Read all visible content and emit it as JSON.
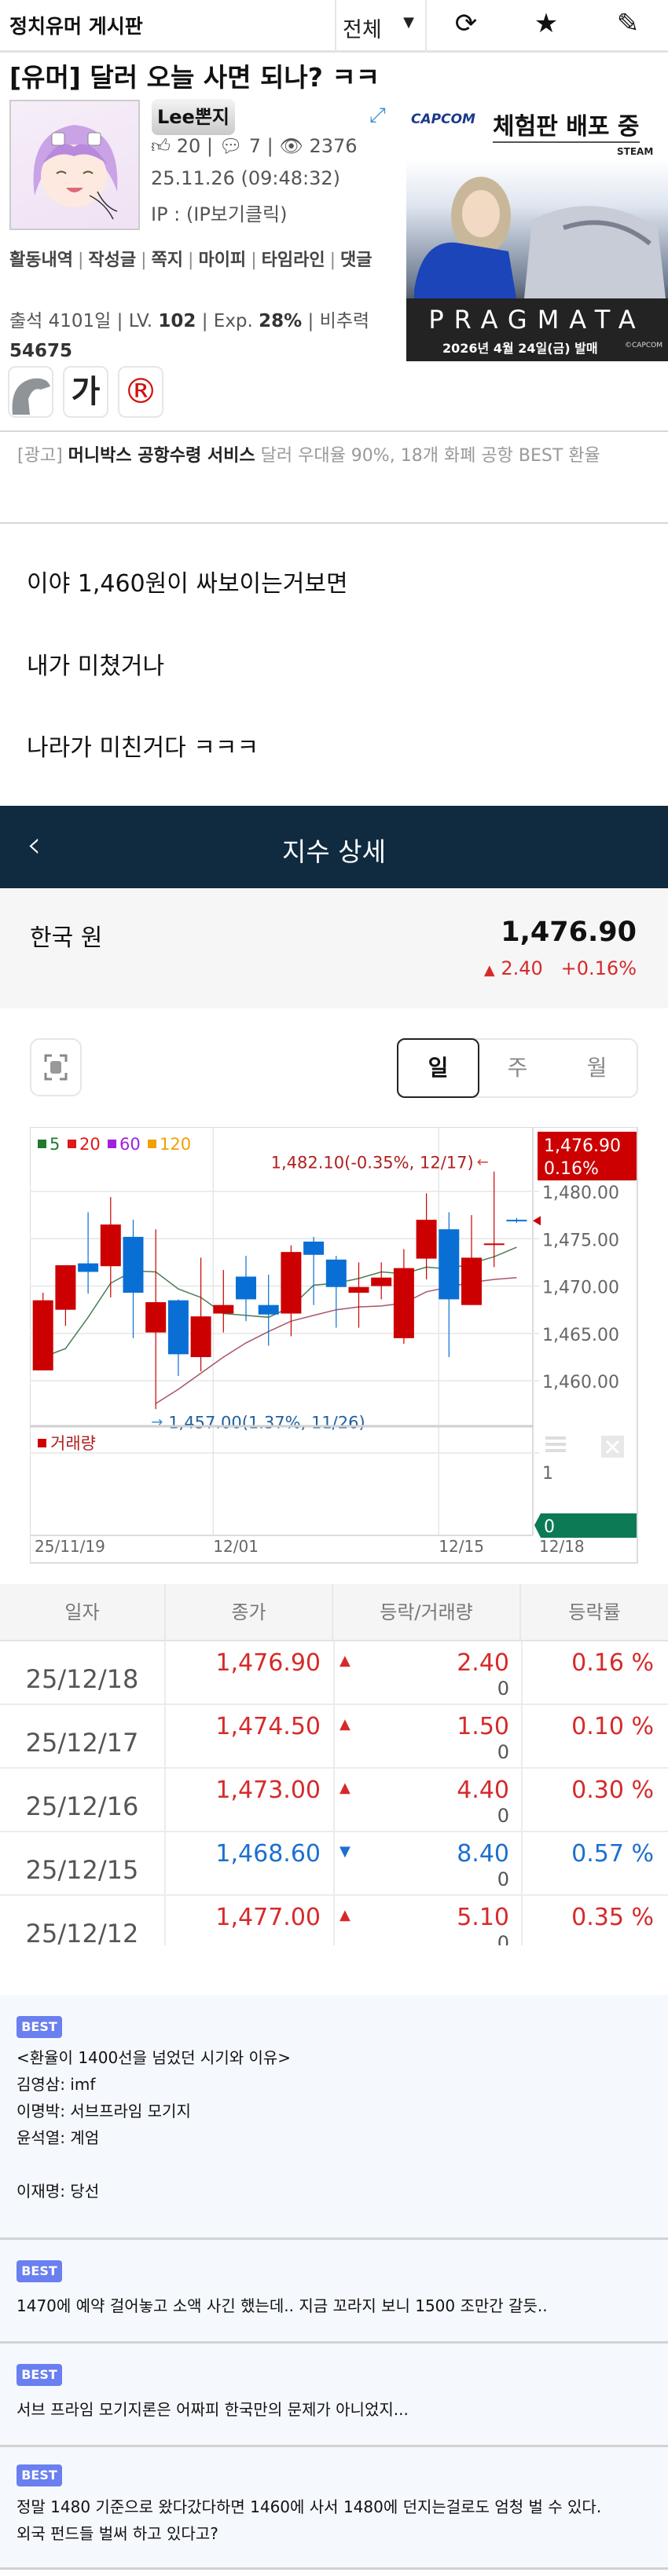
{
  "header": {
    "board_title": "정치유머 게시판",
    "filter_value": "전체",
    "icons": [
      "refresh-icon",
      "star-icon",
      "pencil-icon"
    ]
  },
  "post": {
    "title": "[유머] 달러 오늘 사면 되나? ㅋㅋ",
    "author": "Lee뽄지",
    "likes": "20",
    "comments": "7",
    "views": "2376",
    "date": "25.11.26 (09:48:32)",
    "ip": "IP : (IP보기클릭)",
    "links": [
      "활동내역",
      "작성글",
      "쪽지",
      "마이피",
      "타임라인",
      "댓글"
    ],
    "attendance": "출석 4101일",
    "level_label": "LV.",
    "level": "102",
    "exp_label": "Exp.",
    "exp": "28%",
    "power_label": "비추력",
    "power": "54675",
    "badges": [
      "dolphin-icon",
      "가",
      "®"
    ],
    "body": [
      "이야 1,460원이 싸보이는거보면",
      "내가 미쳤거나",
      "나라가 미친거다 ㅋㅋㅋ"
    ]
  },
  "banner_ad": {
    "brand": "CAPCOM",
    "headline": "체험판 배포 중",
    "platform": "STEAM",
    "game": "PRAGMATA",
    "release": "2026년 4월 24일(금) 발매",
    "copyright": "©CAPCOM"
  },
  "text_ad": {
    "prefix": "[광고]",
    "bold": "머니박스 공항수령 서비스",
    "rest": "달러 우대율 90%, 18개 화폐 공항 BEST 환율"
  },
  "quote": {
    "screen_title": "지수 상세",
    "name": "한국 원",
    "price": "1,476.90",
    "change": "2.40",
    "change_pct": "+0.16%",
    "colors": {
      "up": "#d62a2a",
      "down": "#1c6fd1",
      "header": "#102a40"
    },
    "period_tabs": [
      "일",
      "주",
      "월"
    ],
    "selected_tab": "일"
  },
  "chart_data": {
    "type": "candlestick",
    "dates": [
      "11/19",
      "11/20",
      "11/21",
      "11/24",
      "11/25",
      "11/26",
      "11/27",
      "11/28",
      "12/01",
      "12/02",
      "12/03",
      "12/04",
      "12/05",
      "12/08",
      "12/09",
      "12/10",
      "12/11",
      "12/12",
      "12/15",
      "12/16",
      "12/17",
      "12/18"
    ],
    "open": [
      1461.1,
      1467.5,
      1472.4,
      1472.1,
      1475.2,
      1465.1,
      1468.5,
      1462.5,
      1467.1,
      1471.0,
      1468.0,
      1467.1,
      1474.7,
      1472.8,
      1469.3,
      1470.0,
      1464.5,
      1472.9,
      1476.0,
      1468.0,
      1474.4,
      1477.0
    ],
    "high": [
      1469.3,
      1472.2,
      1477.8,
      1479.4,
      1477.0,
      1476.0,
      1468.6,
      1473.0,
      1471.7,
      1473.2,
      1471.2,
      1474.3,
      1475.2,
      1473.2,
      1472.5,
      1472.5,
      1473.9,
      1479.8,
      1477.8,
      1477.5,
      1482.1,
      1477.2
    ],
    "low": [
      1461.1,
      1465.8,
      1469.2,
      1468.8,
      1464.5,
      1457.0,
      1460.5,
      1461.0,
      1465.1,
      1466.3,
      1463.7,
      1464.7,
      1468.0,
      1465.6,
      1465.6,
      1468.6,
      1463.9,
      1470.7,
      1462.5,
      1468.0,
      1472.0,
      1476.7
    ],
    "close": [
      1468.5,
      1472.2,
      1471.5,
      1476.5,
      1469.3,
      1468.3,
      1462.8,
      1466.8,
      1468.0,
      1468.6,
      1467.0,
      1473.6,
      1473.3,
      1469.9,
      1469.9,
      1470.9,
      1471.9,
      1477.0,
      1468.6,
      1473.0,
      1474.5,
      1476.9
    ],
    "ma5": [
      1462.5,
      1463.4,
      1466.7,
      1470.3,
      1471.6,
      1471.5,
      1469.7,
      1468.8,
      1467.1,
      1466.9,
      1466.7,
      1467.8,
      1470.1,
      1470.3,
      1470.8,
      1471.5,
      1471.3,
      1472.0,
      1471.8,
      1472.4,
      1473.1,
      1474.1
    ],
    "ma20": [
      null,
      null,
      null,
      null,
      null,
      1457.6,
      1459.1,
      1460.8,
      1462.5,
      1464.0,
      1465.2,
      1466.3,
      1466.9,
      1467.5,
      1467.8,
      1467.9,
      1468.2,
      1469.4,
      1469.9,
      1470.4,
      1470.7,
      1470.9
    ],
    "ylim": [
      1455.2,
      1486.8
    ],
    "yticks": [
      "1,460.00",
      "1,465.00",
      "1,470.00",
      "1,475.00",
      "1,480.00"
    ],
    "ytick_values": [
      1460,
      1465,
      1470,
      1475,
      1480
    ],
    "xticks": [
      {
        "label": "25/11/19",
        "date": "11/19"
      },
      {
        "label": "12/01",
        "date": "12/01"
      },
      {
        "label": "12/15",
        "date": "12/15"
      },
      {
        "label": "12/18",
        "date": "12/18"
      }
    ],
    "legend": [
      {
        "name": "5",
        "color": "#1e7a2e"
      },
      {
        "name": "20",
        "color": "#e01818"
      },
      {
        "name": "60",
        "color": "#a020e0"
      },
      {
        "name": "120",
        "color": "#f0a000"
      }
    ],
    "legend_position": "top-left",
    "annotations": {
      "high": "1,482.10(-0.35%, 12/17)",
      "low": "1,457.00(1.37%, 11/26)"
    },
    "last_label": {
      "price": "1,476.90",
      "pct": "0.16%"
    },
    "volume": {
      "label": "거래량",
      "tick": "1",
      "last": "0"
    },
    "colors": {
      "up": "#cc0000",
      "down": "#0a6fd4",
      "ma5": "#4d7d55",
      "ma20": "#a85566",
      "grid": "#e6e6e6"
    },
    "grid": true
  },
  "table": {
    "headers": [
      "일자",
      "종가",
      "등락/거래량",
      "등락률"
    ],
    "rows": [
      {
        "date": "25/12/18",
        "close": "1,476.90",
        "dir": "up",
        "change": "2.40",
        "volume": "0",
        "pct": "0.16 %"
      },
      {
        "date": "25/12/17",
        "close": "1,474.50",
        "dir": "up",
        "change": "1.50",
        "volume": "0",
        "pct": "0.10 %"
      },
      {
        "date": "25/12/16",
        "close": "1,473.00",
        "dir": "up",
        "change": "4.40",
        "volume": "0",
        "pct": "0.30 %"
      },
      {
        "date": "25/12/15",
        "close": "1,468.60",
        "dir": "down",
        "change": "8.40",
        "volume": "0",
        "pct": "0.57 %"
      },
      {
        "date": "25/12/12",
        "close": "1,477.00",
        "dir": "up",
        "change": "5.10",
        "volume": "0",
        "pct": "0.35 %"
      }
    ]
  },
  "best_comments": [
    {
      "badge": "BEST",
      "lines": [
        "<환율이 1400선을 넘었던 시기와 이유>",
        "김영삼: imf",
        "이명박: 서브프라임 모기지",
        "윤석열: 계엄",
        "",
        "이재명: 당선"
      ]
    },
    {
      "badge": "BEST",
      "lines": [
        "1470에 예약 걸어놓고 소액 사긴 했는데.. 지금 꼬라지 보니 1500 조만간 갈듯.."
      ]
    },
    {
      "badge": "BEST",
      "lines": [
        "서브 프라임 모기지론은 어짜피 한국만의 문제가 아니었지..."
      ]
    },
    {
      "badge": "BEST",
      "lines": [
        "정말 1480 기준으로 왔다갔다하면 1460에 사서 1480에 던지는걸로도 엄청 벌 수 있다.",
        "외국 펀드들 벌써 하고 있다고?"
      ]
    }
  ]
}
